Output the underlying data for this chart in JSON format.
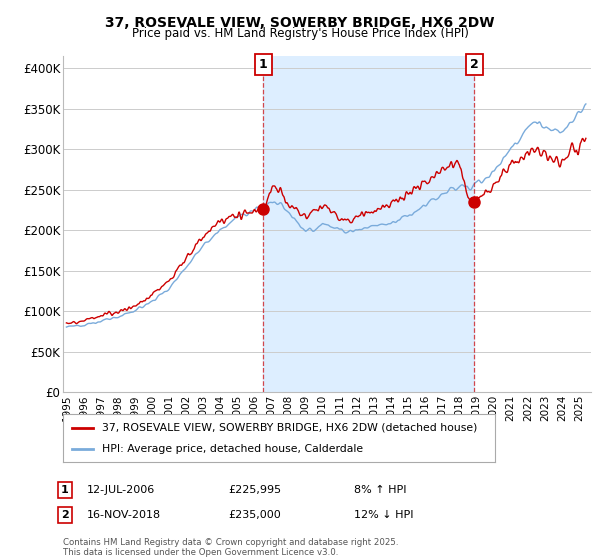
{
  "title1": "37, ROSEVALE VIEW, SOWERBY BRIDGE, HX6 2DW",
  "title2": "Price paid vs. HM Land Registry's House Price Index (HPI)",
  "yticks": [
    0,
    50000,
    100000,
    150000,
    200000,
    250000,
    300000,
    350000,
    400000
  ],
  "ytick_labels": [
    "£0",
    "£50K",
    "£100K",
    "£150K",
    "£200K",
    "£250K",
    "£300K",
    "£350K",
    "£400K"
  ],
  "ylim": [
    0,
    415000
  ],
  "xlim_start": 1994.8,
  "xlim_end": 2025.7,
  "legend1": "37, ROSEVALE VIEW, SOWERBY BRIDGE, HX6 2DW (detached house)",
  "legend2": "HPI: Average price, detached house, Calderdale",
  "marker1_date": "12-JUL-2006",
  "marker1_price": "£225,995",
  "marker1_hpi": "8% ↑ HPI",
  "marker1_x": 2006.53,
  "marker1_y": 225995,
  "marker2_date": "16-NOV-2018",
  "marker2_price": "£235,000",
  "marker2_hpi": "12% ↓ HPI",
  "marker2_x": 2018.87,
  "marker2_y": 235000,
  "footer": "Contains HM Land Registry data © Crown copyright and database right 2025.\nThis data is licensed under the Open Government Licence v3.0.",
  "line_color_red": "#cc0000",
  "line_color_blue": "#7aabdb",
  "shade_color": "#ddeeff",
  "background_color": "#ffffff",
  "grid_color": "#cccccc"
}
